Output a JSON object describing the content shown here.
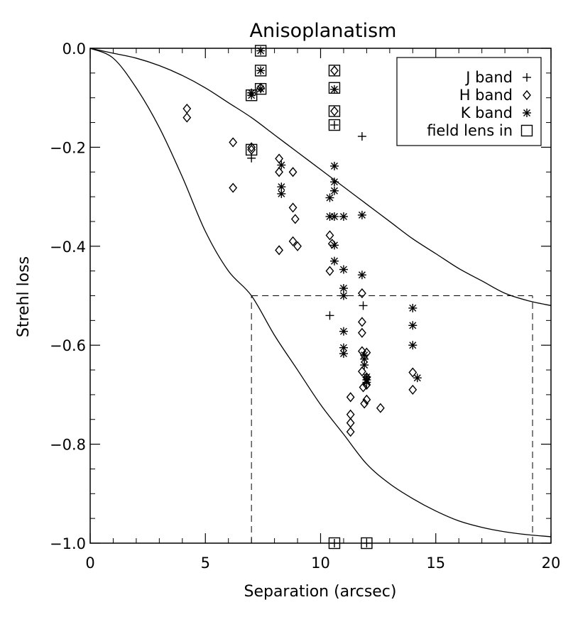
{
  "chart_data": {
    "type": "scatter",
    "title": "Anisoplanatism",
    "xlabel": "Separation (arcsec)",
    "ylabel": "Strehl loss",
    "xlim": [
      0,
      20
    ],
    "ylim": [
      -1.0,
      0.0
    ],
    "xticks": [
      0,
      5,
      10,
      15,
      20
    ],
    "xtick_labels": [
      "0",
      "5",
      "10",
      "15",
      "20"
    ],
    "yticks": [
      0.0,
      -0.2,
      -0.4,
      -0.6,
      -0.8,
      -1.0
    ],
    "ytick_labels": [
      "0.0",
      "−0.2",
      "−0.4",
      "−0.6",
      "−0.8",
      "−1.0"
    ],
    "grid": false,
    "legend_position": "top-right",
    "legend": [
      {
        "label": "J band",
        "marker": "plus"
      },
      {
        "label": "H band",
        "marker": "diamond"
      },
      {
        "label": "K band",
        "marker": "asterisk"
      },
      {
        "label": "field lens in",
        "marker": "square"
      }
    ],
    "curves": [
      {
        "x": [
          0,
          1,
          2,
          3,
          4,
          5,
          6,
          7,
          8,
          9,
          10,
          11,
          12,
          13,
          14,
          15,
          16,
          17,
          18,
          19,
          20
        ],
        "y": [
          0.0,
          -0.01,
          -0.02,
          -0.035,
          -0.055,
          -0.08,
          -0.11,
          -0.14,
          -0.175,
          -0.21,
          -0.245,
          -0.28,
          -0.315,
          -0.35,
          -0.385,
          -0.415,
          -0.445,
          -0.47,
          -0.495,
          -0.51,
          -0.52
        ]
      },
      {
        "x": [
          0,
          1,
          2,
          3,
          4,
          5,
          6,
          7,
          8,
          9,
          10,
          11,
          12,
          13,
          14,
          15,
          16,
          17,
          18,
          19,
          20
        ],
        "y": [
          0.0,
          -0.02,
          -0.08,
          -0.16,
          -0.26,
          -0.37,
          -0.45,
          -0.5,
          -0.58,
          -0.65,
          -0.72,
          -0.78,
          -0.84,
          -0.88,
          -0.91,
          -0.935,
          -0.955,
          -0.968,
          -0.977,
          -0.983,
          -0.987
        ]
      }
    ],
    "reference_lines": [
      {
        "orientation": "horizontal",
        "value": -0.5,
        "from": 7.0,
        "to": 19.2
      },
      {
        "orientation": "vertical",
        "value": 7.0,
        "from": -1.0,
        "to": -0.5
      },
      {
        "orientation": "vertical",
        "value": 19.2,
        "from": -1.0,
        "to": -0.5
      }
    ],
    "series": [
      {
        "name": "J band",
        "marker": "plus",
        "points": [
          [
            7.0,
            -0.222
          ],
          [
            10.6,
            -0.155
          ],
          [
            11.8,
            -0.178
          ],
          [
            10.4,
            -0.54
          ],
          [
            11.85,
            -0.52
          ],
          [
            10.6,
            -1.0
          ],
          [
            12.0,
            -1.0
          ]
        ]
      },
      {
        "name": "H band",
        "marker": "diamond",
        "points": [
          [
            4.2,
            -0.122
          ],
          [
            4.2,
            -0.14
          ],
          [
            6.2,
            -0.19
          ],
          [
            6.2,
            -0.282
          ],
          [
            7.0,
            -0.2
          ],
          [
            7.0,
            -0.205
          ],
          [
            7.4,
            -0.08
          ],
          [
            8.2,
            -0.223
          ],
          [
            8.2,
            -0.25
          ],
          [
            8.2,
            -0.408
          ],
          [
            8.8,
            -0.25
          ],
          [
            8.8,
            -0.322
          ],
          [
            8.8,
            -0.39
          ],
          [
            8.9,
            -0.345
          ],
          [
            9.0,
            -0.4
          ],
          [
            10.6,
            -0.045
          ],
          [
            10.6,
            -0.127
          ],
          [
            10.4,
            -0.378
          ],
          [
            10.5,
            -0.395
          ],
          [
            10.4,
            -0.45
          ],
          [
            11.8,
            -0.495
          ],
          [
            11.8,
            -0.553
          ],
          [
            11.8,
            -0.575
          ],
          [
            11.8,
            -0.612
          ],
          [
            12.0,
            -0.615
          ],
          [
            11.8,
            -0.653
          ],
          [
            12.0,
            -0.665
          ],
          [
            11.85,
            -0.685
          ],
          [
            12.0,
            -0.68
          ],
          [
            11.9,
            -0.718
          ],
          [
            12.0,
            -0.71
          ],
          [
            12.6,
            -0.727
          ],
          [
            11.3,
            -0.705
          ],
          [
            11.3,
            -0.74
          ],
          [
            11.3,
            -0.757
          ],
          [
            11.3,
            -0.775
          ],
          [
            14.0,
            -0.655
          ],
          [
            14.0,
            -0.69
          ]
        ]
      },
      {
        "name": "K band",
        "marker": "asterisk",
        "points": [
          [
            7.0,
            -0.09
          ],
          [
            7.0,
            -0.095
          ],
          [
            7.4,
            -0.005
          ],
          [
            7.4,
            -0.045
          ],
          [
            7.4,
            -0.082
          ],
          [
            8.3,
            -0.236
          ],
          [
            8.3,
            -0.28
          ],
          [
            8.3,
            -0.294
          ],
          [
            10.6,
            -0.083
          ],
          [
            10.6,
            -0.238
          ],
          [
            10.6,
            -0.27
          ],
          [
            10.6,
            -0.288
          ],
          [
            10.6,
            -0.34
          ],
          [
            10.6,
            -0.398
          ],
          [
            10.4,
            -0.302
          ],
          [
            10.4,
            -0.34
          ],
          [
            10.6,
            -0.43
          ],
          [
            11.0,
            -0.34
          ],
          [
            11.0,
            -0.447
          ],
          [
            11.0,
            -0.485
          ],
          [
            11.0,
            -0.5
          ],
          [
            11.0,
            -0.572
          ],
          [
            11.0,
            -0.605
          ],
          [
            11.0,
            -0.617
          ],
          [
            11.8,
            -0.337
          ],
          [
            11.8,
            -0.458
          ],
          [
            11.9,
            -0.62
          ],
          [
            11.9,
            -0.628
          ],
          [
            11.9,
            -0.64
          ],
          [
            12.0,
            -0.664
          ],
          [
            12.0,
            -0.67
          ],
          [
            12.0,
            -0.675
          ],
          [
            14.0,
            -0.525
          ],
          [
            14.0,
            -0.56
          ],
          [
            14.0,
            -0.6
          ],
          [
            14.2,
            -0.666
          ]
        ]
      },
      {
        "name": "field lens in",
        "marker": "square",
        "points": [
          [
            7.0,
            -0.095
          ],
          [
            7.0,
            -0.205
          ],
          [
            7.4,
            -0.005
          ],
          [
            7.4,
            -0.045
          ],
          [
            7.4,
            -0.082
          ],
          [
            10.6,
            -0.045
          ],
          [
            10.6,
            -0.08
          ],
          [
            10.6,
            -0.127
          ],
          [
            10.6,
            -0.155
          ],
          [
            10.6,
            -1.0
          ],
          [
            12.0,
            -1.0
          ]
        ]
      }
    ]
  }
}
